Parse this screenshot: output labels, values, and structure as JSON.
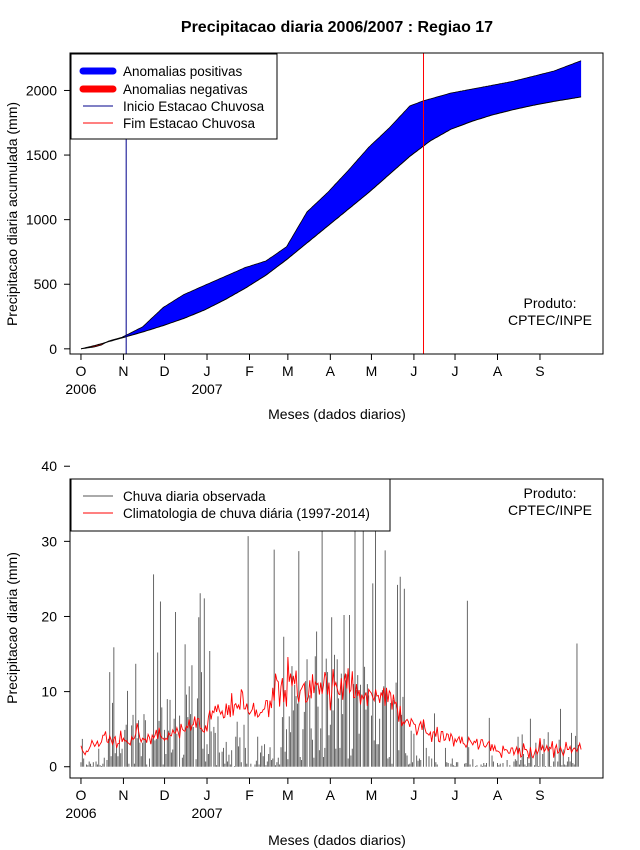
{
  "title": "Precipitacao diaria 2006/2007 : Regiao 17",
  "credit": [
    "Produto:",
    "CPTEC/INPE"
  ],
  "colors": {
    "positive": "#0000ff",
    "negative": "#ff0000",
    "start_line": "#00008b",
    "end_line": "#ff0000",
    "observed": "#000000",
    "climatology": "#ff0000"
  },
  "chart_data": [
    {
      "type": "area",
      "ylabel": "Precipitacao diaria acumulada (mm)",
      "xlabel": "Meses (dados diarios)",
      "x_ticks": [
        {
          "day": 0,
          "label": "O"
        },
        {
          "day": 31,
          "label": "N"
        },
        {
          "day": 61,
          "label": "D"
        },
        {
          "day": 92,
          "label": "J"
        },
        {
          "day": 123,
          "label": "F"
        },
        {
          "day": 151,
          "label": "M"
        },
        {
          "day": 182,
          "label": "A"
        },
        {
          "day": 212,
          "label": "M"
        },
        {
          "day": 243,
          "label": "J"
        },
        {
          "day": 273,
          "label": "J"
        },
        {
          "day": 304,
          "label": "A"
        },
        {
          "day": 335,
          "label": "S"
        }
      ],
      "year_labels": [
        {
          "day": 0,
          "label": "2006"
        },
        {
          "day": 92,
          "label": "2007"
        }
      ],
      "y_ticks": [
        0,
        500,
        1000,
        1500,
        2000
      ],
      "xlim": [
        -8,
        381
      ],
      "ylim": [
        -40,
        2290
      ],
      "legend": [
        {
          "label": "Anomalias positivas",
          "kind": "thick",
          "color": "#0000ff"
        },
        {
          "label": "Anomalias negativas",
          "kind": "thick",
          "color": "#ff0000"
        },
        {
          "label": "Inicio Estacao Chuvosa",
          "kind": "thin",
          "color": "#00008b"
        },
        {
          "label": "Fim Estacao Chuvosa",
          "kind": "thin",
          "color": "#ff0000"
        }
      ],
      "season_start_day": 33,
      "season_end_day": 250,
      "climatology_cumulative": {
        "days": [
          0,
          10,
          20,
          30,
          45,
          60,
          75,
          90,
          105,
          120,
          135,
          150,
          165,
          180,
          195,
          210,
          225,
          240,
          255,
          270,
          285,
          300,
          315,
          330,
          345,
          365
        ],
        "values": [
          0,
          25,
          55,
          85,
          130,
          180,
          235,
          300,
          380,
          470,
          570,
          690,
          820,
          950,
          1080,
          1210,
          1350,
          1490,
          1610,
          1700,
          1760,
          1810,
          1850,
          1885,
          1915,
          1950
        ]
      },
      "observed_cumulative": {
        "days": [
          0,
          10,
          15,
          20,
          30,
          45,
          60,
          75,
          90,
          105,
          120,
          135,
          150,
          165,
          180,
          195,
          210,
          225,
          240,
          250,
          255,
          270,
          285,
          300,
          315,
          330,
          345,
          365
        ],
        "values": [
          0,
          15,
          30,
          60,
          90,
          170,
          320,
          420,
          490,
          560,
          630,
          680,
          790,
          1060,
          1210,
          1380,
          1560,
          1710,
          1880,
          1920,
          1935,
          1980,
          2010,
          2040,
          2070,
          2110,
          2150,
          2230
        ]
      }
    },
    {
      "type": "bar",
      "ylabel": "Precipitacao diaria (mm)",
      "xlabel": "Meses (dados diarios)",
      "x_ticks": [
        {
          "day": 0,
          "label": "O"
        },
        {
          "day": 31,
          "label": "N"
        },
        {
          "day": 61,
          "label": "D"
        },
        {
          "day": 92,
          "label": "J"
        },
        {
          "day": 123,
          "label": "F"
        },
        {
          "day": 151,
          "label": "M"
        },
        {
          "day": 182,
          "label": "A"
        },
        {
          "day": 212,
          "label": "M"
        },
        {
          "day": 243,
          "label": "J"
        },
        {
          "day": 273,
          "label": "J"
        },
        {
          "day": 304,
          "label": "A"
        },
        {
          "day": 335,
          "label": "S"
        }
      ],
      "year_labels": [
        {
          "day": 0,
          "label": "2006"
        },
        {
          "day": 92,
          "label": "2007"
        }
      ],
      "y_ticks": [
        0,
        10,
        20,
        30,
        40
      ],
      "xlim": [
        -8,
        381
      ],
      "ylim": [
        -1.5,
        38.3
      ],
      "legend": [
        {
          "label": "Chuva diaria observada",
          "kind": "thin",
          "color": "#555555"
        },
        {
          "label": "Climatologia de chuva diária (1997-2014)",
          "kind": "thin",
          "color": "#ff0000"
        }
      ],
      "daily_observed": [
        0.6,
        3.7,
        1.1,
        0.0,
        0.3,
        0.2,
        0.7,
        0.4,
        0.1,
        0.6,
        0.0,
        0.7,
        0.3,
        2.4,
        0.2,
        0.1,
        0.4,
        1.2,
        0.0,
        0.9,
        3.7,
        12.6,
        1.4,
        8.5,
        15.9,
        1.8,
        2.7,
        1.4,
        3.5,
        1.8,
        2.4,
        0.0,
        4.9,
        5.6,
        10.1,
        0.4,
        0.0,
        5.5,
        6.9,
        0.4,
        13.7,
        3.8,
        6.2,
        3.2,
        1.4,
        3.2,
        7.0,
        6.2,
        0.3,
        0.0,
        1.1,
        0.0,
        3.8,
        25.6,
        3.5,
        3.7,
        15.2,
        6.1,
        22.0,
        7.9,
        0.3,
        4.9,
        1.7,
        9.0,
        4.8,
        8.9,
        1.9,
        2.3,
        6.4,
        20.6,
        4.4,
        0.0,
        6.8,
        0.0,
        1.2,
        1.6,
        16.3,
        9.6,
        6.6,
        10.7,
        7.0,
        13.5,
        5.3,
        0.0,
        1.0,
        9.1,
        19.9,
        23.1,
        12.6,
        2.4,
        22.4,
        0.7,
        3.0,
        1.7,
        15.4,
        4.7,
        0.0,
        5.3,
        4.5,
        0.2,
        6.7,
        1.9,
        0.0,
        2.0,
        2.5,
        0.4,
        3.3,
        0.7,
        1.6,
        0.3,
        2.2,
        0.0,
        0.1,
        4.0,
        6.0,
        2.7,
        3.9,
        0.6,
        0.0,
        5.6,
        2.5,
        0.4,
        30.7,
        0.0,
        0.4,
        0.0,
        0.0,
        0.3,
        0.8,
        4.0,
        0.3,
        1.9,
        2.8,
        1.4,
        3.0,
        0.2,
        0.7,
        1.7,
        2.6,
        0.9,
        1.1,
        28.9,
        0.2,
        0.6,
        1.2,
        0.3,
        2.6,
        6.6,
        17.3,
        2.0,
        5.0,
        1.0,
        6.7,
        4.6,
        13.4,
        7.5,
        10.9,
        9.4,
        8.4,
        28.7,
        1.3,
        0.9,
        5.0,
        7.3,
        11.4,
        14.3,
        0.0,
        9.5,
        5.1,
        3.6,
        1.2,
        14.7,
        18.0,
        8.0,
        2.2,
        5.1,
        38.3,
        1.3,
        2.5,
        14.4,
        12.6,
        4.2,
        5.6,
        19.9,
        7.5,
        14.9,
        2.4,
        14.3,
        9.1,
        2.5,
        12.4,
        7.0,
        20.2,
        11.5,
        12.3,
        1.1,
        20.2,
        1.5,
        2.4,
        11.0,
        36.0,
        10.2,
        12.2,
        4.4,
        10.9,
        0.0,
        38.3,
        13.3,
        7.6,
        11.0,
        9.5,
        0.0,
        6.8,
        24.4,
        3.5,
        38.3,
        3.0,
        3.0,
        6.4,
        0.0,
        10.2,
        10.7,
        28.8,
        9.8,
        1.1,
        1.3,
        8.5,
        0.4,
        8.9,
        0.0,
        11.2,
        24.2,
        2.2,
        25.3,
        6.9,
        9.3,
        23.7,
        1.8,
        1.5,
        0.3,
        0.4,
        4.8,
        0.6,
        4.4,
        0.0,
        1.5,
        0.8,
        1.1,
        0.9,
        0.0,
        5.9,
        0.0,
        2.5,
        0.0,
        1.4,
        0.0,
        1.1,
        0.0,
        7.1,
        0.6,
        0.3,
        0.0,
        0.0,
        0.0,
        0.0,
        0.0,
        2.5,
        0.6,
        0.5,
        0.0,
        0.4,
        1.1,
        0.2,
        0.1,
        0.6,
        0.6,
        0.0,
        0.0,
        0.0,
        0.0,
        0.4,
        0.5,
        22.1,
        2.6,
        0.3,
        0.0,
        1.0,
        0.0,
        0.1,
        0.2,
        0.0,
        0.0,
        0.3,
        0.1,
        0.5,
        0.2,
        0.5,
        0.0,
        6.5,
        0.0,
        1.5,
        0.7,
        0.0,
        0.0,
        0.5,
        0.2,
        0.4,
        0.0,
        0.5,
        0.0,
        0.0,
        0.9,
        0.0,
        0.2,
        0.0,
        0.0,
        0.7,
        1.0,
        0.8,
        4.0,
        0.3,
        0.9,
        4.3,
        1.7,
        0.3,
        0.1,
        1.3,
        0.5,
        6.4,
        1.6,
        0.0,
        0.2,
        3.2,
        1.8,
        0.1,
        3.7,
        0.0,
        1.7,
        3.7,
        0.1,
        0.0,
        4.6,
        2.4,
        0.1,
        0.0,
        0.7,
        2.4,
        0.0,
        0.7,
        3.6,
        7.7,
        0.2,
        2.3,
        0.3,
        0.2,
        0.7,
        1.3,
        0.7,
        4.5,
        0.5,
        0.3,
        4.1,
        16.4,
        2.9,
        0.0
      ],
      "daily_climatology": [
        2.8,
        2.2,
        1.9,
        1.6,
        2.1,
        2.0,
        2.4,
        2.8,
        3.5,
        3.1,
        2.7,
        3.0,
        3.4,
        2.7,
        3.0,
        3.3,
        4.2,
        4.2,
        4.7,
        3.3,
        3.2,
        4.1,
        3.6,
        3.0,
        3.7,
        4.0,
        2.5,
        3.1,
        3.1,
        4.8,
        3.3,
        3.8,
        3.4,
        3.5,
        3.2,
        3.1,
        2.9,
        4.0,
        3.6,
        3.8,
        4.4,
        5.8,
        4.8,
        3.8,
        3.3,
        3.8,
        3.6,
        3.7,
        3.2,
        4.3,
        3.9,
        3.0,
        4.2,
        3.8,
        4.2,
        4.9,
        3.7,
        5.2,
        4.2,
        3.8,
        3.8,
        3.5,
        3.8,
        3.6,
        4.5,
        4.2,
        4.1,
        4.9,
        4.5,
        4.5,
        5.2,
        4.6,
        3.8,
        5.7,
        5.0,
        4.8,
        4.7,
        5.4,
        5.2,
        6.3,
        4.8,
        5.5,
        5.6,
        6.7,
        5.2,
        6.4,
        6.4,
        5.1,
        5.1,
        4.7,
        4.6,
        5.5,
        4.7,
        6.6,
        7.5,
        6.3,
        7.4,
        7.2,
        8.1,
        7.3,
        8.3,
        7.5,
        7.0,
        7.4,
        6.5,
        6.6,
        8.4,
        6.9,
        8.2,
        6.6,
        9.8,
        6.8,
        8.2,
        8.4,
        7.8,
        8.2,
        7.6,
        10.3,
        9.9,
        7.7,
        7.7,
        8.4,
        7.3,
        7.0,
        7.3,
        7.6,
        8.5,
        6.7,
        7.6,
        6.6,
        6.8,
        7.2,
        7.2,
        7.6,
        7.7,
        8.8,
        8.8,
        6.6,
        8.8,
        7.8,
        10.5,
        8.8,
        12.4,
        11.5,
        11.3,
        8.0,
        10.7,
        11.8,
        8.6,
        10.2,
        8.0,
        14.6,
        11.3,
        12.4,
        10.7,
        12.1,
        11.0,
        12.8,
        9.5,
        8.6,
        10.1,
        10.4,
        10.8,
        11.1,
        8.6,
        8.7,
        9.3,
        11.5,
        9.1,
        12.3,
        9.8,
        11.3,
        10.9,
        11.1,
        9.6,
        11.2,
        9.7,
        10.9,
        12.6,
        11.9,
        9.6,
        11.2,
        7.5,
        9.8,
        13.0,
        10.7,
        11.2,
        10.4,
        9.7,
        9.6,
        11.8,
        8.9,
        11.3,
        12.4,
        10.4,
        13.1,
        9.9,
        10.2,
        12.7,
        9.2,
        9.2,
        11.0,
        9.4,
        10.2,
        8.3,
        9.6,
        9.0,
        9.4,
        9.9,
        8.1,
        10.3,
        10.0,
        9.8,
        9.2,
        8.8,
        10.3,
        9.4,
        9.5,
        8.5,
        9.9,
        9.4,
        10.5,
        8.1,
        10.5,
        8.6,
        10.1,
        9.8,
        7.6,
        9.6,
        8.4,
        8.6,
        7.6,
        6.0,
        8.1,
        5.4,
        6.0,
        5.7,
        6.1,
        6.3,
        6.0,
        5.3,
        6.4,
        6.1,
        5.7,
        5.6,
        4.2,
        4.8,
        5.6,
        6.0,
        4.9,
        6.3,
        5.1,
        4.5,
        4.4,
        4.2,
        4.6,
        3.3,
        4.6,
        4.7,
        4.0,
        5.3,
        3.4,
        3.3,
        4.7,
        4.7,
        3.5,
        3.6,
        4.4,
        4.3,
        3.4,
        4.4,
        4.0,
        2.7,
        3.7,
        3.3,
        3.7,
        4.0,
        3.1,
        4.0,
        3.1,
        3.0,
        2.6,
        3.0,
        3.9,
        3.5,
        3.2,
        2.9,
        3.4,
        3.2,
        3.7,
        2.3,
        2.8,
        3.6,
        3.6,
        2.8,
        2.6,
        2.8,
        3.2,
        3.4,
        2.1,
        3.0,
        2.2,
        2.8,
        2.1,
        2.1,
        2.0,
        1.8,
        1.2,
        2.8,
        2.2,
        2.3,
        2.2,
        1.8,
        1.8,
        2.5,
        2.5,
        1.6,
        2.1,
        2.6,
        1.6,
        2.5,
        1.3,
        1.5,
        3.1,
        2.3,
        2.3,
        2.0,
        1.1,
        2.6,
        1.4,
        1.2,
        1.8,
        2.4,
        1.7,
        2.2,
        3.8,
        2.2,
        2.8,
        2.0,
        2.3,
        2.8,
        2.1,
        2.6,
        2.4,
        3.4,
        1.2,
        2.4,
        2.9,
        1.8,
        2.0,
        2.6,
        2.0,
        1.5,
        2.0,
        3.3,
        2.3,
        2.3,
        2.7,
        1.9,
        2.3,
        2.5,
        2.3,
        2.0,
        2.5,
        3.1,
        2.3
      ]
    }
  ]
}
